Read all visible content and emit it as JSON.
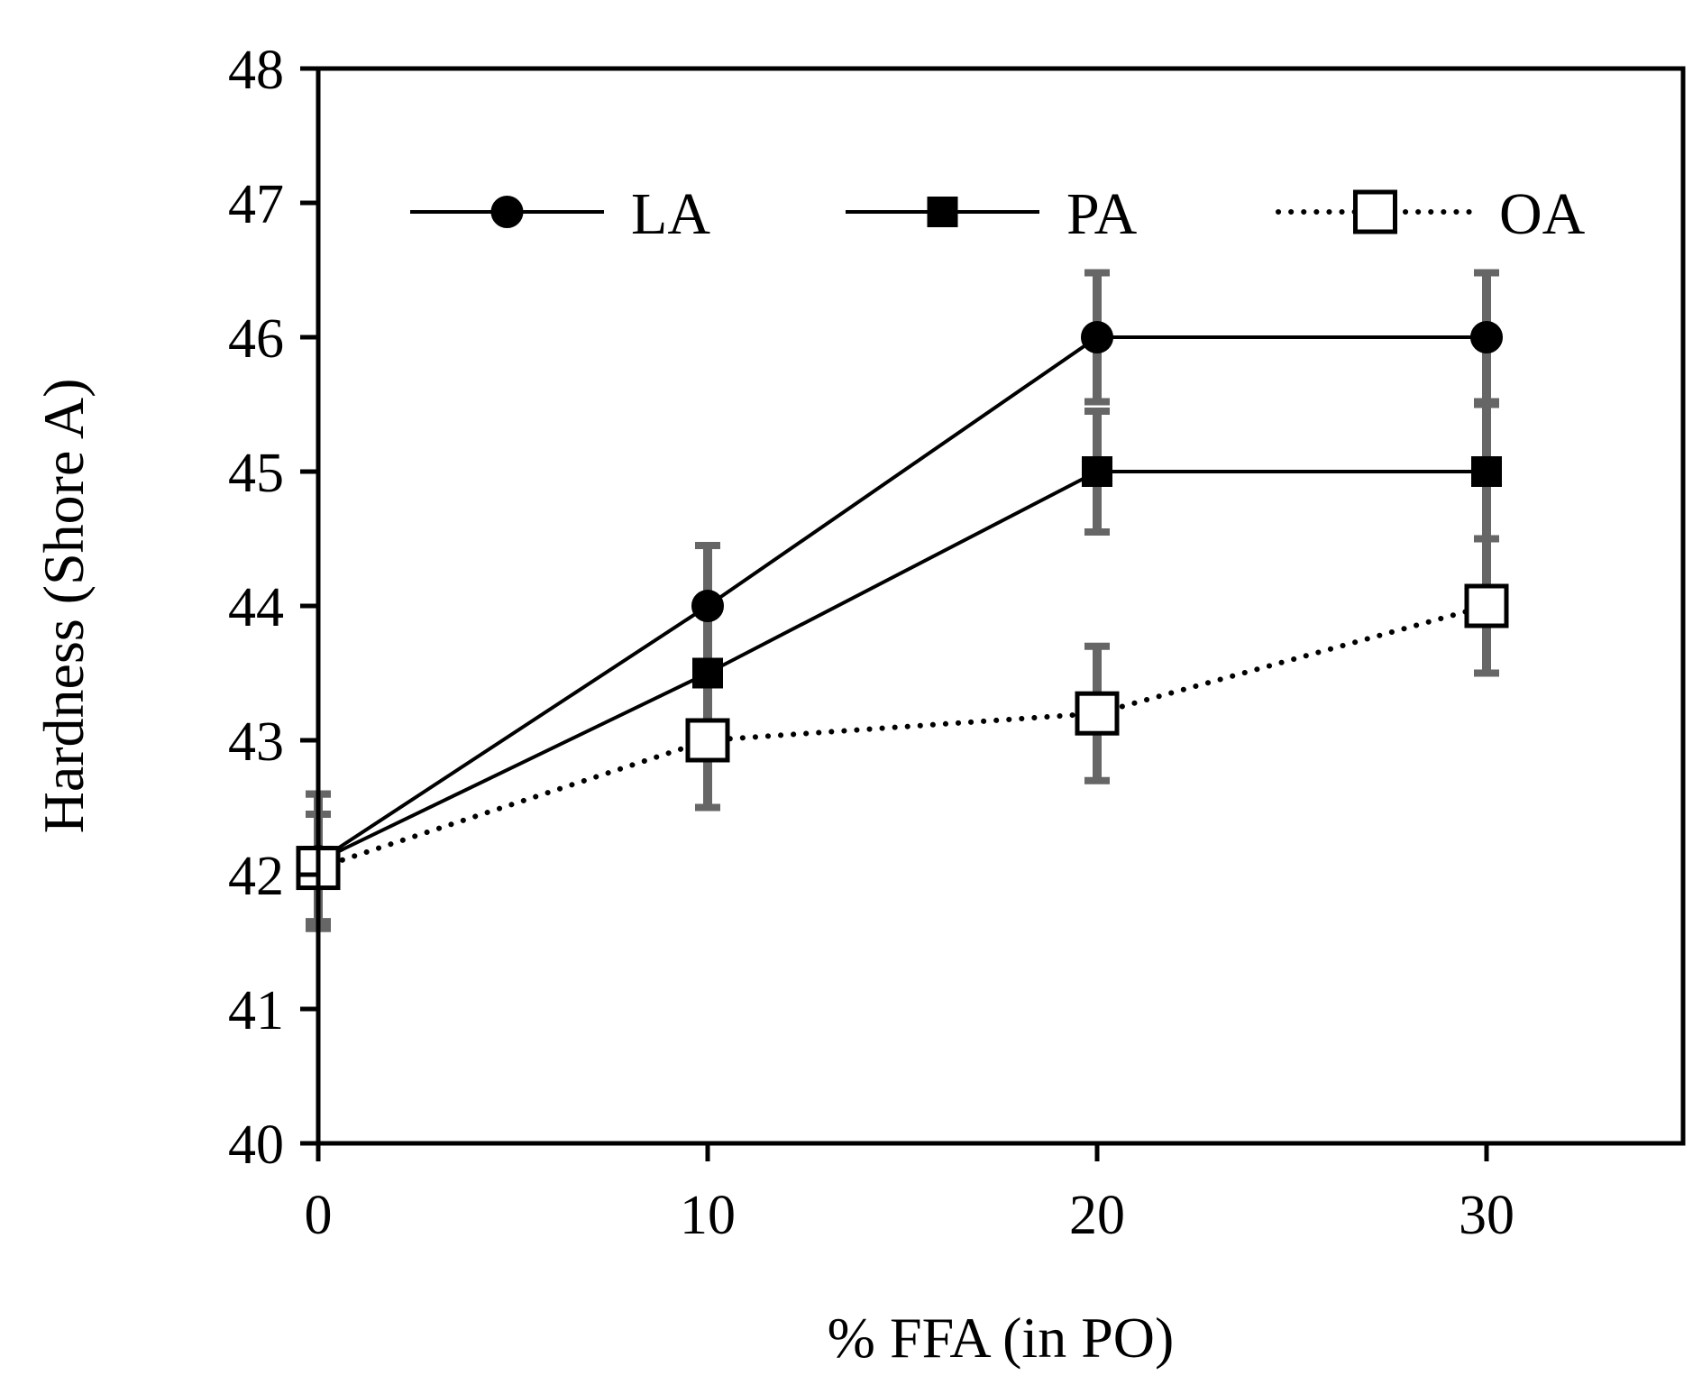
{
  "chart_data": {
    "type": "line",
    "title": "",
    "xlabel": "% FFA (in PO)",
    "ylabel": "Hardness (Shore A)",
    "xlim": [
      0,
      35
    ],
    "ylim": [
      40,
      48
    ],
    "xticks": [
      0,
      10,
      20,
      30
    ],
    "yticks": [
      40,
      41,
      42,
      43,
      44,
      45,
      46,
      47,
      48
    ],
    "grid": false,
    "legend_position": "top",
    "x": [
      0,
      10,
      20,
      30
    ],
    "series": [
      {
        "name": "LA",
        "marker": "filled-circle",
        "line_style": "solid",
        "values": [
          42.1,
          44.0,
          46.0,
          46.0
        ],
        "errors": [
          0.5,
          0.45,
          0.48,
          0.48
        ]
      },
      {
        "name": "PA",
        "marker": "filled-square",
        "line_style": "solid",
        "values": [
          42.1,
          43.5,
          45.0,
          45.0
        ],
        "errors": [
          0.5,
          0.5,
          0.45,
          0.5
        ]
      },
      {
        "name": "OA",
        "marker": "open-square",
        "line_style": "dotted",
        "values": [
          42.05,
          43.0,
          43.2,
          44.0
        ],
        "errors": [
          0.4,
          0.5,
          0.5,
          0.5
        ]
      }
    ],
    "colors": {
      "line": "#000000",
      "error_bar": "#666666",
      "axis": "#000000",
      "background": "#ffffff"
    }
  }
}
